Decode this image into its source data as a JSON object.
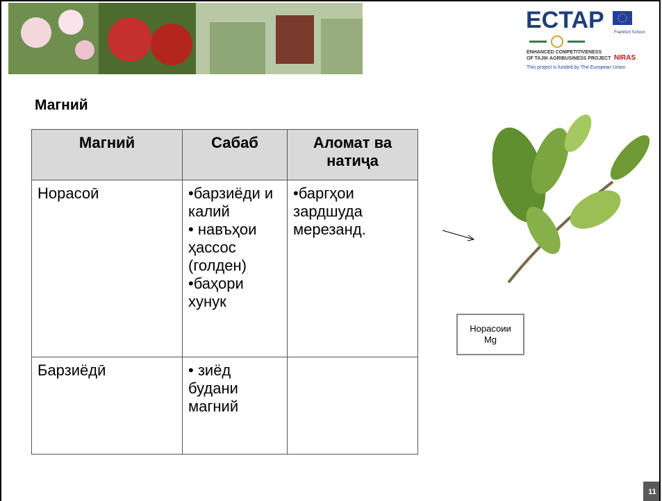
{
  "header": {
    "logo": "ECTAP",
    "tagline_1": "ENHANCED COMPETITIVENESS",
    "tagline_2": "OF TAJIK AGRIBUSINESS PROJECT",
    "funded": "This project is funded by The European Union",
    "partner_1": "Frankfurt School",
    "partner_2": "NIRAS"
  },
  "title": "Магний",
  "table": {
    "headers": [
      "Магний",
      "Сабаб",
      "Аломат ва натиҷа"
    ],
    "rows": [
      [
        "Норасоӣ",
        [
          "•барзиёди и калий",
          "• навъҳои ҳассос (голден)",
          "•баҳори хунук"
        ],
        [
          "•баргҳои зардшуда мерезанд."
        ]
      ],
      [
        "Барзиёдӣ",
        [
          "• зиёд будани магний"
        ],
        []
      ]
    ]
  },
  "figure_label": "Норасоии Mg",
  "page_number": "11"
}
